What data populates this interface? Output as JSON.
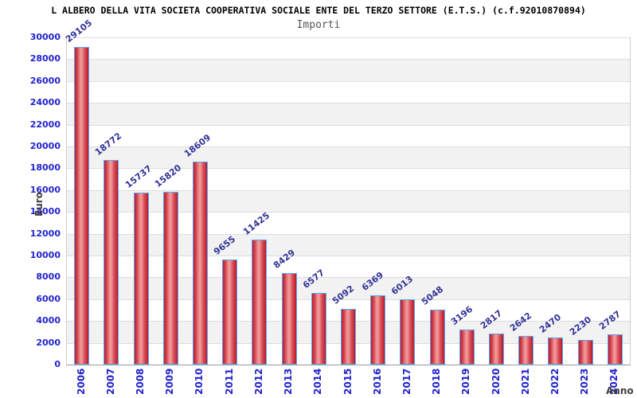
{
  "title": "L ALBERO DELLA VITA SOCIETA COOPERATIVA SOCIALE ENTE DEL TERZO SETTORE (E.T.S.) (c.f.92010870894)",
  "subtitle": "Importi",
  "chart_data": {
    "type": "bar",
    "title": "Importi",
    "categories": [
      "2006",
      "2007",
      "2008",
      "2009",
      "2010",
      "2011",
      "2012",
      "2013",
      "2014",
      "2015",
      "2016",
      "2017",
      "2018",
      "2019",
      "2020",
      "2021",
      "2022",
      "2023",
      "2024"
    ],
    "values": [
      29105,
      18772,
      15737,
      15820,
      18609,
      9655,
      11425,
      8429,
      6577,
      5092,
      6369,
      6013,
      5048,
      3196,
      2817,
      2642,
      2470,
      2230,
      2787
    ],
    "xlabel": "Anno",
    "ylabel": "Euro",
    "ylim": [
      0,
      30000
    ],
    "ytick_step": 2000,
    "yticks": [
      0,
      2000,
      4000,
      6000,
      8000,
      10000,
      12000,
      14000,
      16000,
      18000,
      20000,
      22000,
      24000,
      26000,
      28000,
      30000
    ],
    "grid": true,
    "legend": "none",
    "value_labels_rotated": true
  },
  "colors": {
    "bar_edge": "#59a7f7",
    "bar_dark": "#bb1c2c",
    "bar_light": "#f09b9b",
    "tick_label": "#2222cc",
    "value_label": "#333399",
    "axis_title": "#404040",
    "band_alt": "#f2f2f2",
    "gridline": "#dddddd",
    "title": "#000000",
    "subtitle": "#555555"
  }
}
